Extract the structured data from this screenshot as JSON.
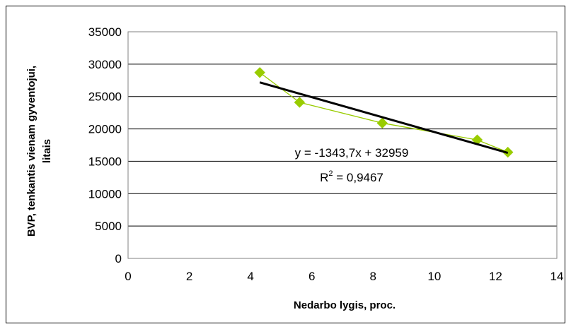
{
  "chart_data": {
    "type": "scatter",
    "title": "",
    "xlabel": "Nedarbo lygis, proc.",
    "ylabel_lines": [
      "BVP, tenkantis vienam gyventojui,",
      "litais"
    ],
    "xlim": [
      0,
      14
    ],
    "ylim": [
      0,
      35000
    ],
    "x_ticks": [
      0,
      2,
      4,
      6,
      8,
      10,
      12,
      14
    ],
    "y_ticks": [
      0,
      5000,
      10000,
      15000,
      20000,
      25000,
      30000,
      35000
    ],
    "grid": "horizontal",
    "series": [
      {
        "x": [
          4.3,
          5.6,
          8.3,
          11.4,
          12.4
        ],
        "y": [
          28700,
          24100,
          20900,
          18300,
          16400
        ],
        "color": "#99cc00",
        "marker": "diamond",
        "connected": true
      }
    ],
    "trendline": {
      "slope": -1343.7,
      "intercept": 32959,
      "x_range": [
        4.3,
        12.4
      ],
      "color": "#000000"
    },
    "annotations": {
      "equation_prefix": "y = -1343,7x + 32959",
      "r2_label": "R",
      "r2_sup": "2",
      "r2_value": " = 0,9467"
    }
  }
}
